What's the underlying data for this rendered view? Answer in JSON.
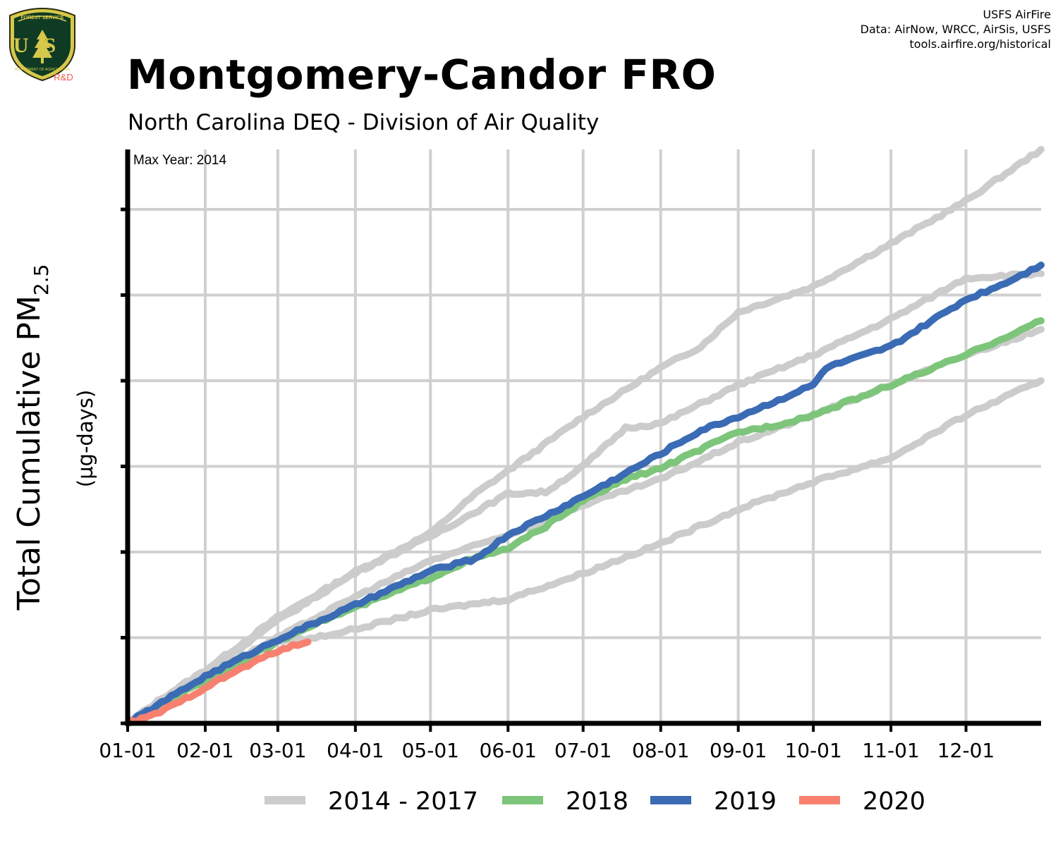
{
  "logo": {
    "banner": "FOREST SERVICE",
    "letters": "US",
    "ring": "DEPARTMENT OF AGRICULTURE",
    "tag": "R&D",
    "colors": {
      "shield_green": "#0f3b25",
      "shield_gold": "#d6c84a",
      "tag_red": "#e8604c"
    }
  },
  "credits": [
    "USFS AirFire",
    "Data: AirNow, WRCC, AirSis, USFS",
    "tools.airfire.org/historical"
  ],
  "header": {
    "title": "Montgomery-Candor FRO",
    "subtitle": "North Carolina DEQ - Division of Air Quality"
  },
  "chart_data": {
    "type": "line",
    "ylabel_main": "Total Cumulative PM",
    "ylabel_sub": "2.5",
    "ylabel_units": "(µg-days)",
    "annotation": "Max Year: 2014",
    "xlim": [
      1,
      366
    ],
    "ylim": [
      0,
      6.7
    ],
    "y_gridlines": [
      1,
      2,
      3,
      4,
      5,
      6
    ],
    "x_ticks": [
      {
        "label": "01-01",
        "day": 1
      },
      {
        "label": "02-01",
        "day": 32
      },
      {
        "label": "03-01",
        "day": 61
      },
      {
        "label": "04-01",
        "day": 92
      },
      {
        "label": "05-01",
        "day": 122
      },
      {
        "label": "06-01",
        "day": 153
      },
      {
        "label": "07-01",
        "day": 183
      },
      {
        "label": "08-01",
        "day": 214
      },
      {
        "label": "09-01",
        "day": 245
      },
      {
        "label": "10-01",
        "day": 275
      },
      {
        "label": "11-01",
        "day": 306
      },
      {
        "label": "12-01",
        "day": 336
      }
    ],
    "grid": true,
    "legend_position": "bottom",
    "legend": [
      {
        "label": "2014 - 2017",
        "color": "#cccccc"
      },
      {
        "label": "2018",
        "color": "#7dc57a"
      },
      {
        "label": "2019",
        "color": "#3a6bb4"
      },
      {
        "label": "2020",
        "color": "#f7806f"
      }
    ],
    "series": [
      {
        "label": "2014",
        "group": "2014 - 2017",
        "color": "#cccccc",
        "points": [
          [
            1,
            0
          ],
          [
            15,
            0.3
          ],
          [
            32,
            0.62
          ],
          [
            61,
            1.24
          ],
          [
            92,
            1.77
          ],
          [
            122,
            2.22
          ],
          [
            140,
            2.68
          ],
          [
            153,
            2.95
          ],
          [
            183,
            3.58
          ],
          [
            214,
            4.15
          ],
          [
            230,
            4.4
          ],
          [
            245,
            4.8
          ],
          [
            275,
            5.1
          ],
          [
            306,
            5.6
          ],
          [
            336,
            6.1
          ],
          [
            366,
            6.7
          ]
        ]
      },
      {
        "label": "2015",
        "group": "2014 - 2017",
        "color": "#cccccc",
        "points": [
          [
            1,
            0
          ],
          [
            32,
            0.58
          ],
          [
            61,
            1.2
          ],
          [
            92,
            1.76
          ],
          [
            122,
            2.18
          ],
          [
            153,
            2.68
          ],
          [
            168,
            2.7
          ],
          [
            183,
            3.0
          ],
          [
            200,
            3.45
          ],
          [
            214,
            3.5
          ],
          [
            245,
            3.95
          ],
          [
            275,
            4.3
          ],
          [
            306,
            4.72
          ],
          [
            336,
            5.2
          ],
          [
            366,
            5.25
          ]
        ]
      },
      {
        "label": "2016",
        "group": "2014 - 2017",
        "color": "#cccccc",
        "points": [
          [
            1,
            0
          ],
          [
            32,
            0.52
          ],
          [
            61,
            0.96
          ],
          [
            72,
            0.98
          ],
          [
            92,
            1.1
          ],
          [
            122,
            1.32
          ],
          [
            153,
            1.45
          ],
          [
            183,
            1.75
          ],
          [
            214,
            2.1
          ],
          [
            245,
            2.5
          ],
          [
            275,
            2.82
          ],
          [
            306,
            3.1
          ],
          [
            336,
            3.6
          ],
          [
            366,
            4.0
          ]
        ]
      },
      {
        "label": "2017",
        "group": "2014 - 2017",
        "color": "#cccccc",
        "points": [
          [
            1,
            0
          ],
          [
            32,
            0.55
          ],
          [
            61,
            1.0
          ],
          [
            92,
            1.48
          ],
          [
            122,
            1.9
          ],
          [
            153,
            2.2
          ],
          [
            183,
            2.55
          ],
          [
            214,
            2.85
          ],
          [
            245,
            3.28
          ],
          [
            275,
            3.6
          ],
          [
            306,
            3.95
          ],
          [
            336,
            4.3
          ],
          [
            366,
            4.6
          ]
        ]
      },
      {
        "label": "2018",
        "group": "2018",
        "color": "#7dc57a",
        "points": [
          [
            1,
            0
          ],
          [
            32,
            0.5
          ],
          [
            61,
            0.95
          ],
          [
            72,
            1.12
          ],
          [
            92,
            1.35
          ],
          [
            122,
            1.7
          ],
          [
            137,
            1.9
          ],
          [
            153,
            2.04
          ],
          [
            168,
            2.3
          ],
          [
            183,
            2.6
          ],
          [
            200,
            2.85
          ],
          [
            214,
            2.98
          ],
          [
            245,
            3.4
          ],
          [
            260,
            3.48
          ],
          [
            275,
            3.6
          ],
          [
            306,
            3.95
          ],
          [
            336,
            4.3
          ],
          [
            366,
            4.7
          ]
        ]
      },
      {
        "label": "2019",
        "group": "2019",
        "color": "#3a6bb4",
        "points": [
          [
            1,
            0
          ],
          [
            32,
            0.55
          ],
          [
            61,
            0.98
          ],
          [
            92,
            1.38
          ],
          [
            122,
            1.78
          ],
          [
            140,
            1.92
          ],
          [
            153,
            2.2
          ],
          [
            170,
            2.45
          ],
          [
            183,
            2.65
          ],
          [
            200,
            2.92
          ],
          [
            214,
            3.15
          ],
          [
            230,
            3.42
          ],
          [
            245,
            3.58
          ],
          [
            255,
            3.7
          ],
          [
            275,
            3.95
          ],
          [
            280,
            4.15
          ],
          [
            306,
            4.4
          ],
          [
            336,
            4.95
          ],
          [
            350,
            5.12
          ],
          [
            366,
            5.35
          ]
        ]
      },
      {
        "label": "2020",
        "group": "2020",
        "color": "#f7806f",
        "points": [
          [
            1,
            0
          ],
          [
            10,
            0.08
          ],
          [
            20,
            0.22
          ],
          [
            32,
            0.42
          ],
          [
            45,
            0.62
          ],
          [
            61,
            0.85
          ],
          [
            73,
            0.95
          ]
        ]
      }
    ]
  }
}
